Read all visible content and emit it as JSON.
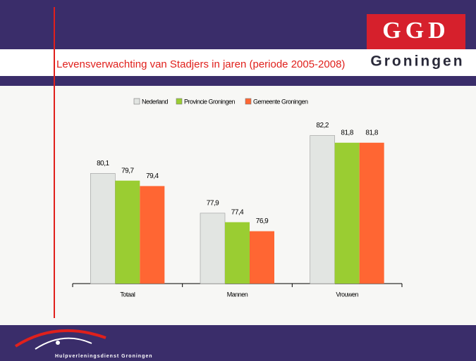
{
  "header": {
    "logo": "GGD",
    "logo_sub": "Groningen"
  },
  "footer": {
    "text": "Hulpverleningsdienst Groningen"
  },
  "chart_data": {
    "type": "bar",
    "title": "Levensverwachting van Stadjers in jaren (periode 2005-2008)",
    "categories": [
      "Totaal",
      "Mannen",
      "Vrouwen"
    ],
    "series": [
      {
        "name": "Nederland",
        "color": "#e2e5e2",
        "values": [
          80.1,
          77.9,
          82.2
        ],
        "value_labels": [
          "80,1",
          "77,9",
          "82,2"
        ]
      },
      {
        "name": "Provincie Groningen",
        "color": "#9acd32",
        "values": [
          79.7,
          77.4,
          81.8
        ],
        "value_labels": [
          "79,7",
          "77,4",
          "81,8"
        ]
      },
      {
        "name": "Gemeente Groningen",
        "color": "#ff6633",
        "values": [
          79.4,
          76.9,
          81.8
        ],
        "value_labels": [
          "79,4",
          "76,9",
          "81,8"
        ]
      }
    ],
    "ylim": [
      74,
      83
    ]
  }
}
